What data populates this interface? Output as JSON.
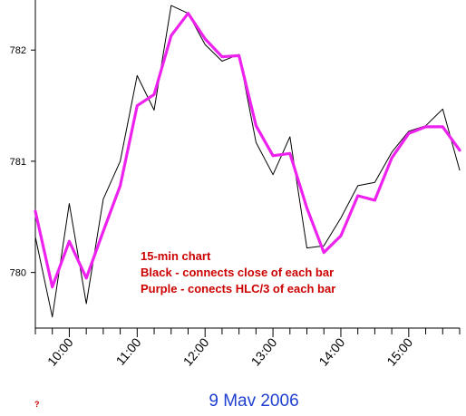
{
  "chart_data": {
    "type": "line",
    "ylim": [
      779.5,
      782.45
    ],
    "y_ticks": [
      780,
      781,
      782
    ],
    "x_ticks": [
      "10:00",
      "11:00",
      "12:00",
      "13:00",
      "14:00",
      "15:00"
    ],
    "x_tick_hours": [
      10,
      11,
      12,
      13,
      14,
      15
    ],
    "x_range": [
      9.5,
      15.75
    ],
    "date_label": "9 Mav 2006",
    "question_mark": "?",
    "annotations": [
      "15-min chart",
      "Black  - connects close of each bar",
      "Purple - conects HLC/3 of each bar"
    ],
    "series": [
      {
        "color": "#000000",
        "x": [
          9.5,
          9.75,
          10.0,
          10.25,
          10.5,
          10.75,
          11.0,
          11.25,
          11.5,
          11.75,
          12.0,
          12.25,
          12.5,
          12.75,
          13.0,
          13.25,
          13.5,
          13.75,
          14.0,
          14.25,
          14.5,
          14.75,
          15.0,
          15.25,
          15.5,
          15.75
        ],
        "values": [
          780.32,
          779.6,
          780.62,
          779.72,
          780.66,
          781.0,
          781.77,
          781.46,
          782.4,
          782.33,
          782.05,
          781.9,
          781.96,
          781.17,
          780.88,
          781.22,
          780.22,
          780.24,
          780.49,
          780.78,
          780.81,
          781.08,
          781.27,
          781.32,
          781.47,
          780.92
        ]
      },
      {
        "color": "#ee22ee",
        "x": [
          9.5,
          9.75,
          10.0,
          10.25,
          10.5,
          10.75,
          11.0,
          11.25,
          11.5,
          11.75,
          12.0,
          12.25,
          12.5,
          12.75,
          13.0,
          13.25,
          13.5,
          13.75,
          14.0,
          14.25,
          14.5,
          14.75,
          15.0,
          15.25,
          15.5,
          15.75
        ],
        "values": [
          780.55,
          779.87,
          780.28,
          779.95,
          780.37,
          780.78,
          781.5,
          781.6,
          782.13,
          782.33,
          782.1,
          781.94,
          781.95,
          781.32,
          781.05,
          781.07,
          780.58,
          780.18,
          780.33,
          780.69,
          780.65,
          781.03,
          781.25,
          781.31,
          781.31,
          781.1
        ]
      }
    ]
  }
}
